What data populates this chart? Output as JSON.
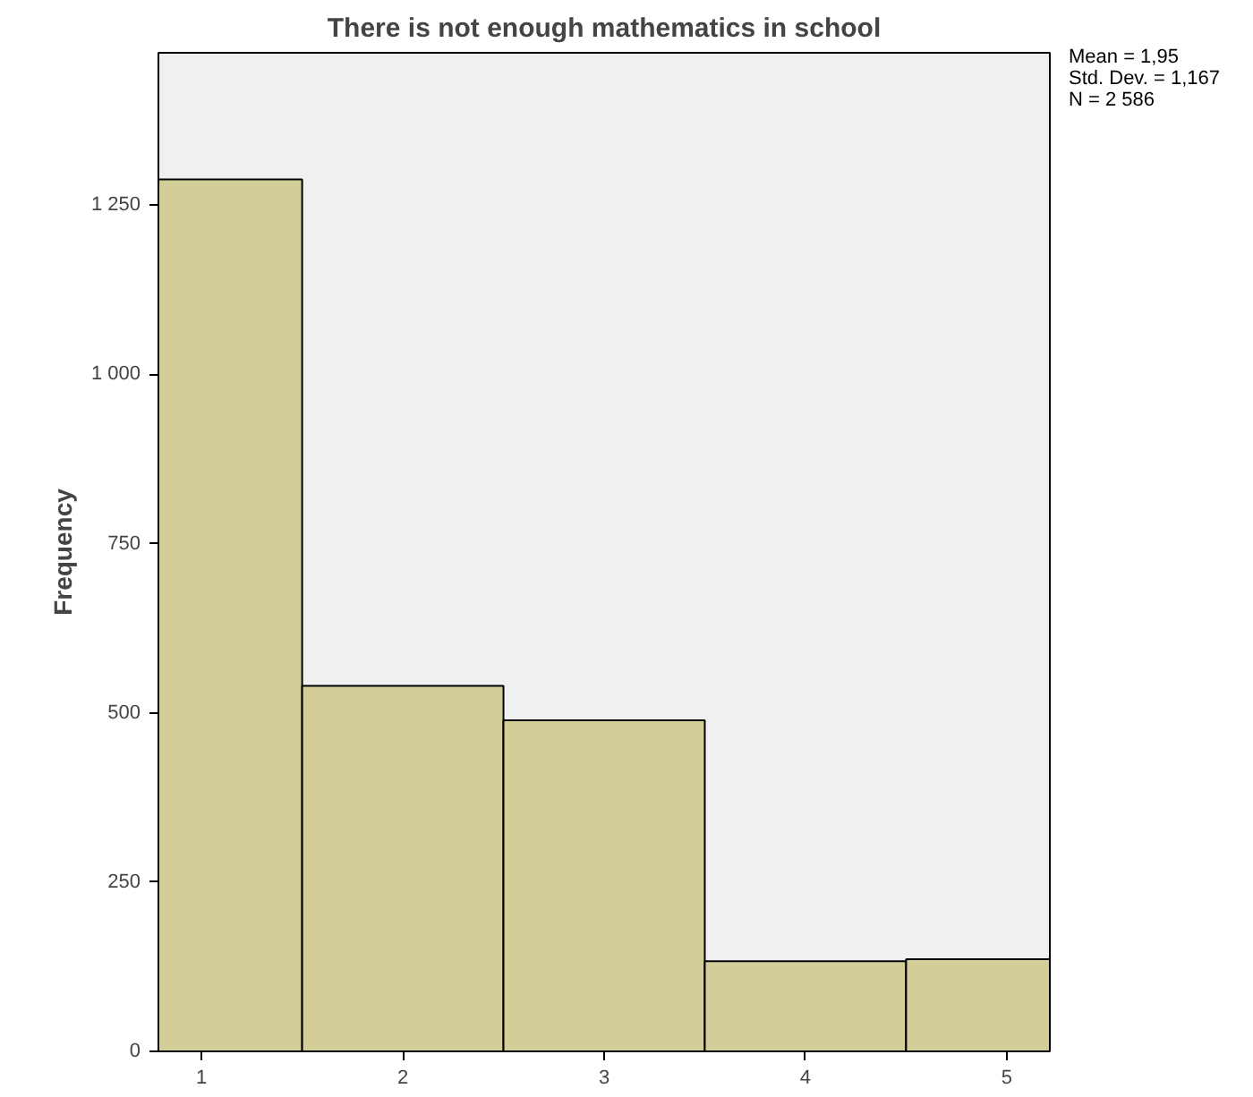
{
  "chart_data": {
    "type": "histogram",
    "title": "There is not enough mathematics in school",
    "ylabel": "Frequency",
    "bins": [
      0.786,
      1.5,
      2.5,
      3.5,
      4.5,
      5.214
    ],
    "values": [
      1288,
      540,
      489,
      133,
      136
    ],
    "color": "#d3ce97",
    "xlim": [
      0.786,
      5.214
    ],
    "xticks": [
      1,
      2,
      3,
      4,
      5
    ],
    "ylim": [
      0,
      1475
    ],
    "yticks": [
      0,
      250,
      500,
      750,
      {
        "value": 1000,
        "label": "1 000"
      },
      {
        "value": 1250,
        "label": "1 250"
      }
    ],
    "grid": false,
    "annotations": [
      "Mean = 1,95",
      "Std. Dev. = 1,167",
      "N = 2 586"
    ]
  }
}
